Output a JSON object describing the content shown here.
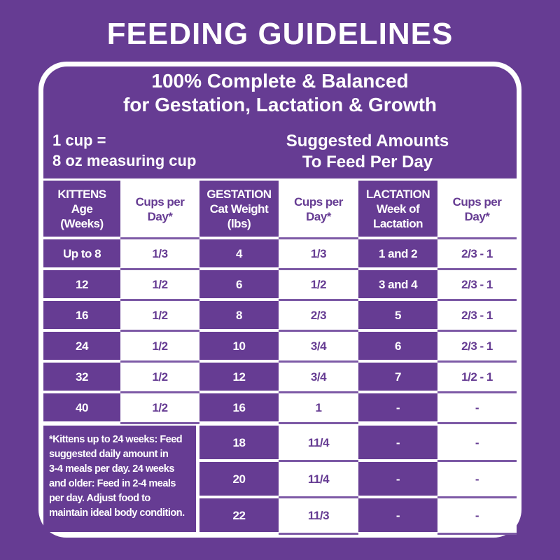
{
  "title": "FEEDING GUIDELINES",
  "subtitle": [
    "100% Complete & Balanced",
    "for Gestation, Lactation & Growth"
  ],
  "measure": [
    "1 cup =",
    "8 oz measuring cup"
  ],
  "suggested": [
    "Suggested Amounts",
    "To Feed Per Day"
  ],
  "table": {
    "headers": [
      [
        "KITTENS",
        "Age",
        "(Weeks)"
      ],
      [
        "Cups per",
        "Day*"
      ],
      [
        "GESTATION",
        "Cat Weight",
        "(lbs)"
      ],
      [
        "Cups per",
        "Day*"
      ],
      [
        "LACTATION",
        "Week of",
        "Lactation"
      ],
      [
        "Cups per",
        "Day*"
      ]
    ],
    "kittens": [
      [
        "Up to 8",
        "1/3"
      ],
      [
        "12",
        "1/2"
      ],
      [
        "16",
        "1/2"
      ],
      [
        "24",
        "1/2"
      ],
      [
        "32",
        "1/2"
      ],
      [
        "40",
        "1/2"
      ]
    ],
    "gestation_lactation": [
      [
        "4",
        "1/3",
        "1 and 2",
        "2/3 - 1"
      ],
      [
        "6",
        "1/2",
        "3 and 4",
        "2/3 - 1"
      ],
      [
        "8",
        "2/3",
        "5",
        "2/3 - 1"
      ],
      [
        "10",
        "3/4",
        "6",
        "2/3 - 1"
      ],
      [
        "12",
        "3/4",
        "7",
        "1/2 - 1"
      ],
      [
        "16",
        "1",
        "-",
        "-"
      ],
      [
        "18",
        "11/4",
        "-",
        "-"
      ],
      [
        "20",
        "11/4",
        "-",
        "-"
      ],
      [
        "22",
        "11/3",
        "-",
        "-"
      ]
    ],
    "footnote": [
      "*Kittens up to 24 weeks: Feed",
      "suggested daily amount in",
      "3-4 meals per day. 24 weeks",
      "and older: Feed in 2-4 meals",
      "per day. Adjust food to",
      "maintain ideal body condition."
    ]
  }
}
